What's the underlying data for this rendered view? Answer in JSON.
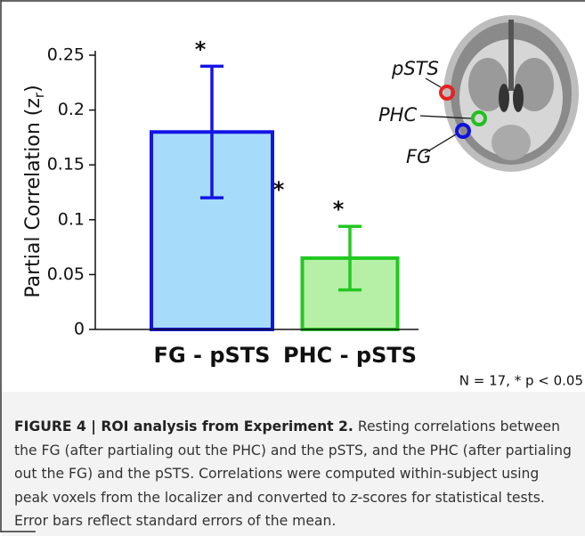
{
  "chart_data": {
    "type": "bar",
    "y_label": {
      "main": "Partial Correlation (z",
      "sub": "r",
      "end": ")"
    },
    "categories": [
      "FG - pSTS",
      "PHC - pSTS"
    ],
    "values": [
      0.18,
      0.065
    ],
    "errors": [
      0.06,
      0.029
    ],
    "colors": [
      "#a6dcf9",
      "#b6f0a6"
    ],
    "edge_colors": [
      "#1414e6",
      "#22c822"
    ],
    "significance_labels": [
      "*",
      "*"
    ],
    "between_label": "*",
    "ylim": [
      0,
      0.25
    ],
    "yticks": [
      0,
      0.05,
      0.1,
      0.15,
      0.2,
      0.25
    ],
    "note": "N = 17, * p < 0.05",
    "inset_labels": [
      "pSTS",
      "PHC",
      "FG"
    ]
  },
  "caption": {
    "title": "FIGURE 4 | ROI analysis from Experiment 2.",
    "text_before": "Resting correlations between the FG (after partialing out the PHC) and the pSTS, and the PHC (after partialing out the FG) and the pSTS. Correlations were computed within-subject using peak voxels from the localizer and converted to ",
    "italic": "z",
    "text_after": "-scores for statistical tests. Error bars reflect standard errors of the mean."
  }
}
